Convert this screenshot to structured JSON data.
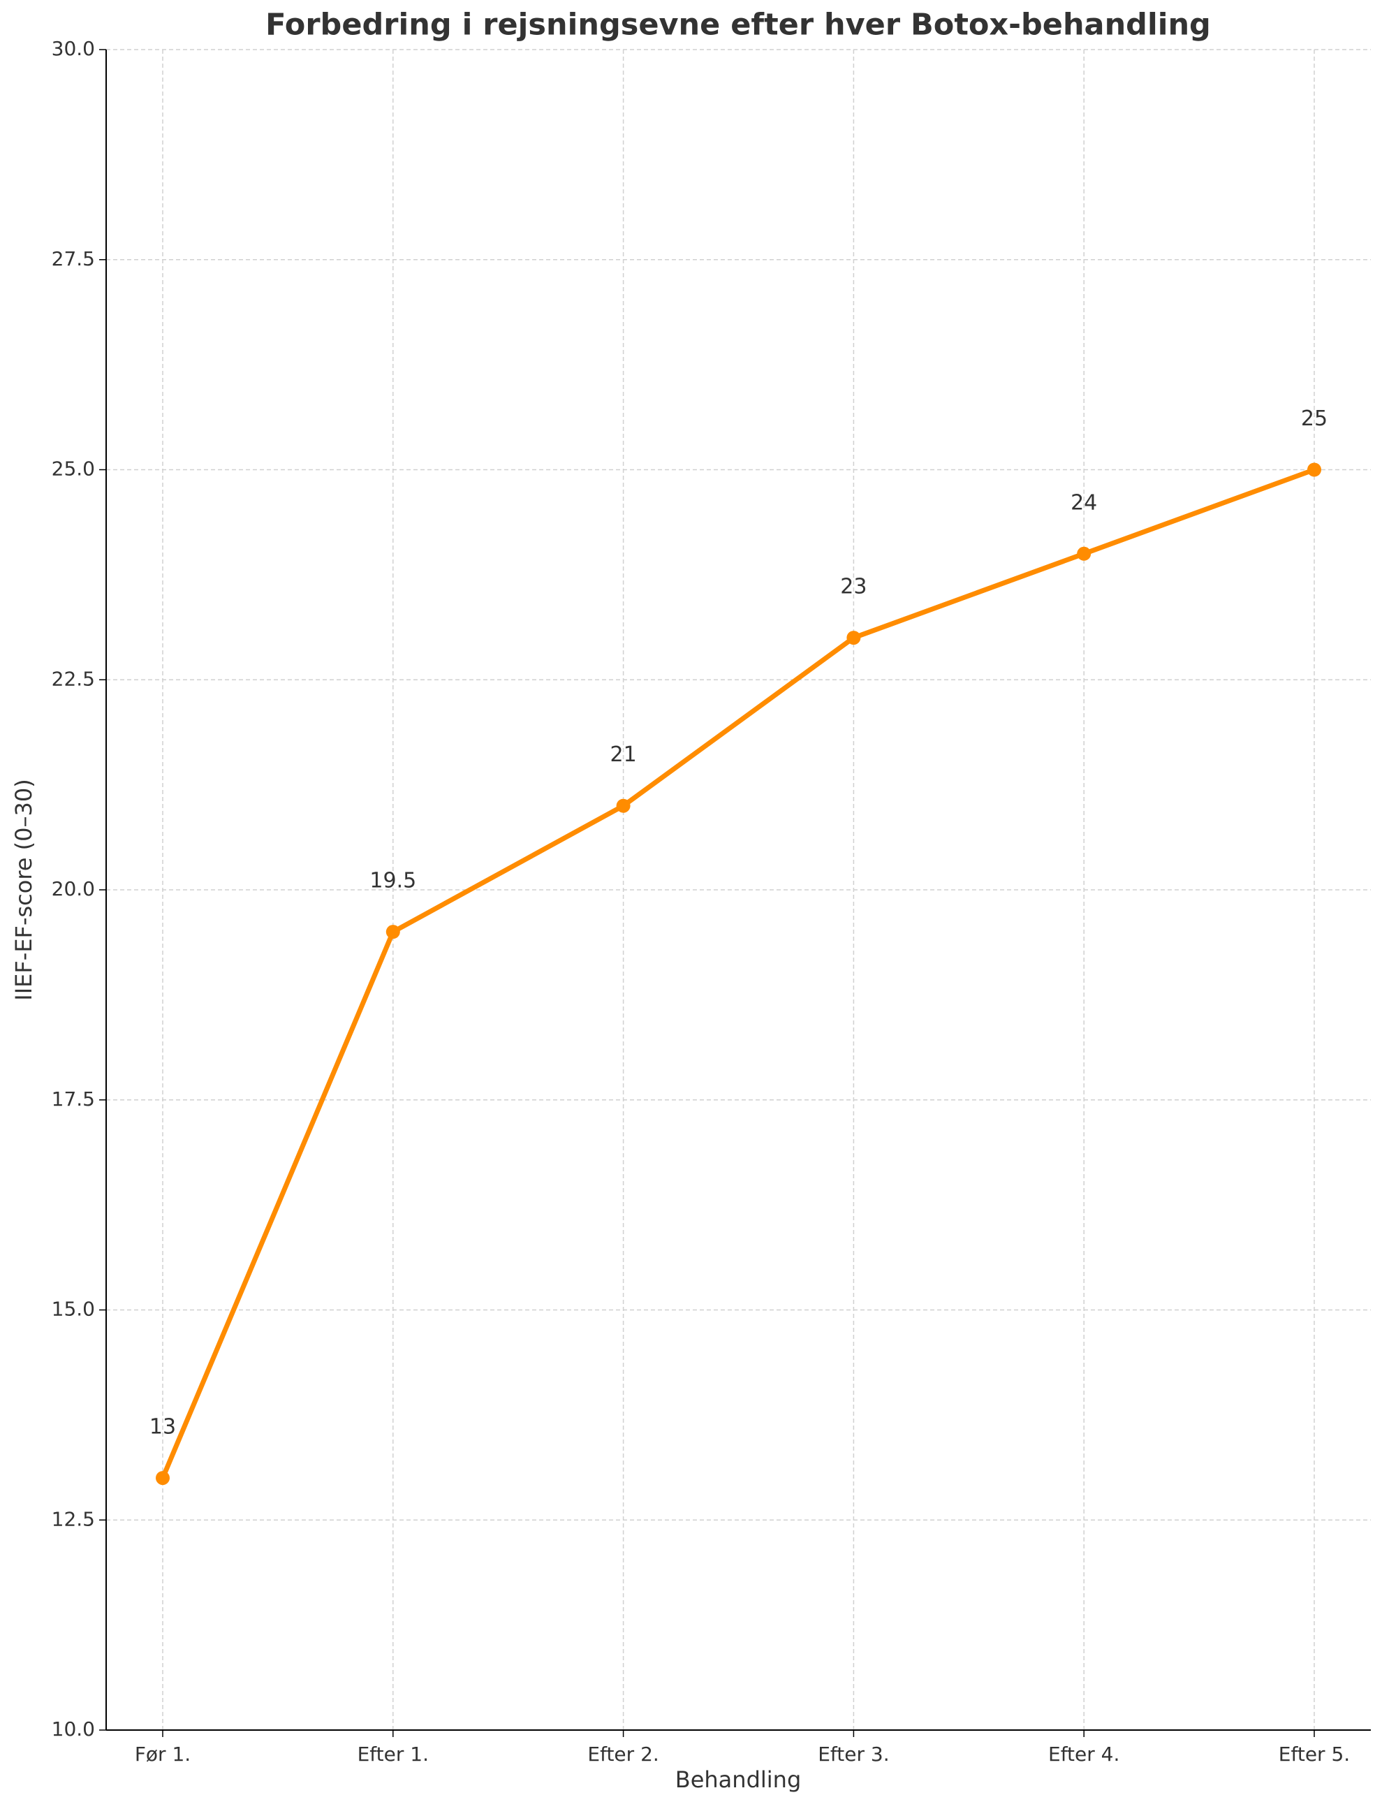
{
  "chart_data": {
    "type": "line",
    "title": "Forbedring i rejsningsevne efter hver Botox-behandling",
    "x_label": "Behandling",
    "y_label": "IIEF-EF-score (0–30)",
    "categories": [
      "Før 1.",
      "Efter 1.",
      "Efter 2.",
      "Efter 3.",
      "Efter 4.",
      "Efter 5."
    ],
    "series": [
      {
        "name": "IIEF-EF-score",
        "color": "#ff8c00",
        "values": [
          13,
          19.5,
          21,
          23,
          24,
          25
        ]
      }
    ],
    "ylim": [
      10,
      30
    ],
    "yticks": [
      {
        "value": 10,
        "label": "10.0"
      },
      12.5,
      {
        "value": 15,
        "label": "15.0"
      },
      17.5,
      {
        "value": 20,
        "label": "20.0"
      },
      22.5,
      {
        "value": 25,
        "label": "25.0"
      },
      27.5,
      {
        "value": 30,
        "label": "30.0"
      }
    ],
    "grid": true
  }
}
